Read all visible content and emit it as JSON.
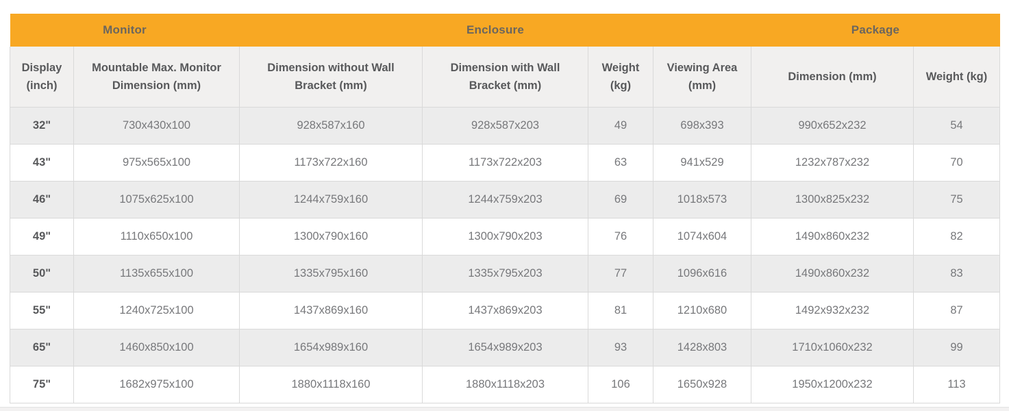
{
  "table": {
    "groups": [
      {
        "label": "Monitor",
        "span": 2
      },
      {
        "label": "Enclosure",
        "span": 4
      },
      {
        "label": "Package",
        "span": 2
      }
    ],
    "columns": [
      "Display (inch)",
      "Mountable Max. Monitor Dimension (mm)",
      "Dimension without Wall Bracket (mm)",
      "Dimension with Wall Bracket (mm)",
      "Weight (kg)",
      "Viewing Area (mm)",
      "Dimension (mm)",
      "Weight (kg)"
    ],
    "rows": [
      [
        "32\"",
        "730x430x100",
        "928x587x160",
        "928x587x203",
        "49",
        "698x393",
        "990x652x232",
        "54"
      ],
      [
        "43\"",
        "975x565x100",
        "1173x722x160",
        "1173x722x203",
        "63",
        "941x529",
        "1232x787x232",
        "70"
      ],
      [
        "46\"",
        "1075x625x100",
        "1244x759x160",
        "1244x759x203",
        "69",
        "1018x573",
        "1300x825x232",
        "75"
      ],
      [
        "49\"",
        "1110x650x100",
        "1300x790x160",
        "1300x790x203",
        "76",
        "1074x604",
        "1490x860x232",
        "82"
      ],
      [
        "50\"",
        "1135x655x100",
        "1335x795x160",
        "1335x795x203",
        "77",
        "1096x616",
        "1490x860x232",
        "83"
      ],
      [
        "55\"",
        "1240x725x100",
        "1437x869x160",
        "1437x869x203",
        "81",
        "1210x680",
        "1492x932x232",
        "87"
      ],
      [
        "65\"",
        "1460x850x100",
        "1654x989x160",
        "1654x989x203",
        "93",
        "1428x803",
        "1710x1060x232",
        "99"
      ],
      [
        "75\"",
        "1682x975x100",
        "1880x1118x160",
        "1880x1118x203",
        "106",
        "1650x928",
        "1950x1200x232",
        "113"
      ]
    ]
  },
  "colors": {
    "group_header_bg": "#F8A823",
    "group_header_text": "#6B665E",
    "column_header_bg": "#F1F0EF",
    "column_header_text": "#58595B",
    "cell_text": "#77787B",
    "stripe_row_bg": "#ECECEC",
    "border": "#D9D9D9"
  }
}
